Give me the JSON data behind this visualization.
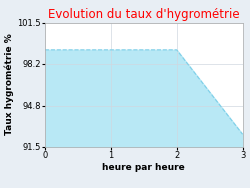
{
  "title": "Evolution du taux d'hygrométrie",
  "title_color": "#ff0000",
  "xlabel": "heure par heure",
  "ylabel": "Taux hygrométrie %",
  "xlim": [
    0,
    3
  ],
  "ylim": [
    91.5,
    101.5
  ],
  "yticks": [
    91.5,
    94.8,
    98.2,
    101.5
  ],
  "xticks": [
    0,
    1,
    2,
    3
  ],
  "x": [
    0,
    2,
    3
  ],
  "y": [
    99.3,
    99.3,
    92.5
  ],
  "line_color": "#7ecfe8",
  "fill_color": "#b8e8f5",
  "fill_alpha": 1.0,
  "bg_color": "#e8eef4",
  "plot_bg_color": "#ffffff",
  "grid_color": "#d0d8e0",
  "title_fontsize": 8.5,
  "label_fontsize": 6.5,
  "tick_fontsize": 6
}
